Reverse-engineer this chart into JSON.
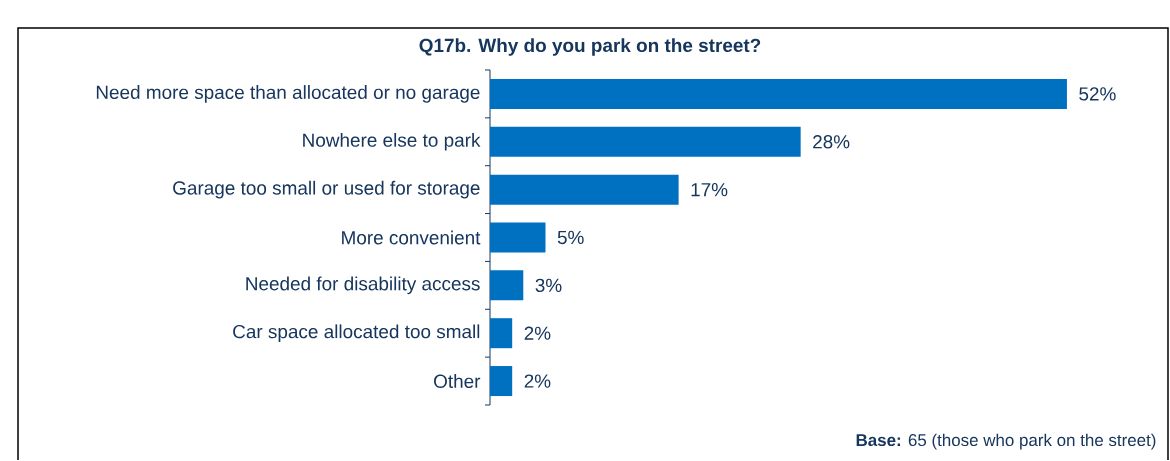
{
  "chart_data": {
    "type": "bar",
    "orientation": "horizontal",
    "title": "Q17b. Why do you park on the street?",
    "categories": [
      "Need more space than allocated or no garage",
      "Nowhere else to park",
      "Garage too small or used for storage",
      "More convenient",
      "Needed for disability access",
      "Car space allocated too small",
      "Other"
    ],
    "values": [
      52,
      28,
      17,
      5,
      3,
      2,
      2
    ],
    "value_labels": [
      "52%",
      "28%",
      "17%",
      "5%",
      "3%",
      "2%",
      "2%"
    ],
    "color": "#0070c0",
    "annotations": [
      "**Base:** 65 (those who park on the street)"
    ]
  }
}
